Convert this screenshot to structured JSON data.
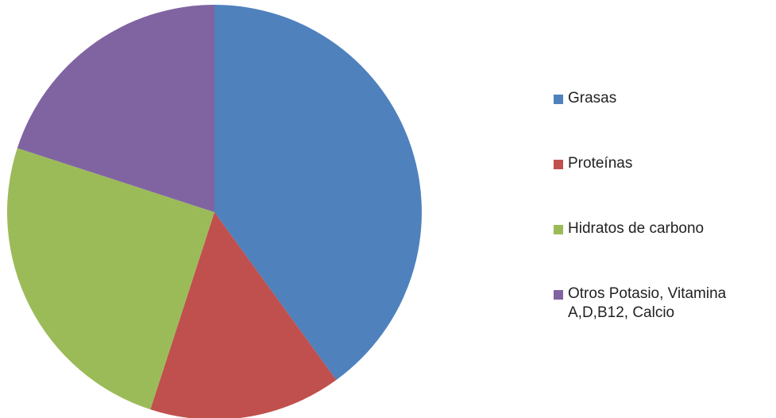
{
  "chart_data": {
    "type": "pie",
    "categories": [
      "Grasas",
      "Proteínas",
      "Hidratos de carbono",
      "Otros Potasio, Vitamina A,D,B12, Calcio"
    ],
    "values": [
      40,
      15,
      25,
      20
    ],
    "colors": [
      "#4f81bd",
      "#c0504d",
      "#9bbb59",
      "#8064a2"
    ],
    "legend": "right"
  }
}
